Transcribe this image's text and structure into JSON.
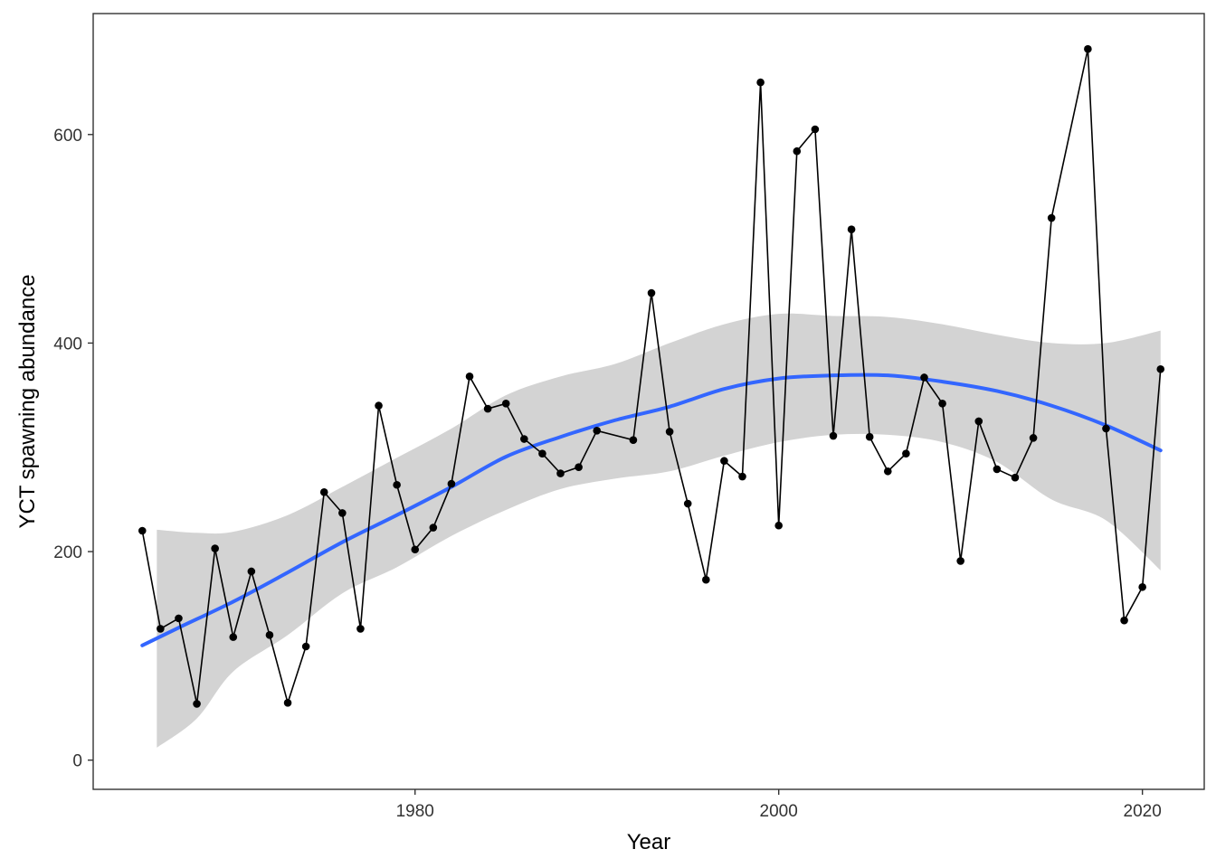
{
  "chart_data": {
    "type": "line",
    "title": "",
    "xlabel": "Year",
    "ylabel": "YCT spawning abundance",
    "xlim": [
      1962.3,
      2023.4
    ],
    "ylim": [
      -28,
      716
    ],
    "x_ticks": [
      1980,
      2000,
      2020
    ],
    "y_ticks": [
      0,
      200,
      400,
      600
    ],
    "grid": false,
    "legend": "none",
    "colors": {
      "observed": "#000000",
      "smooth": "#3366FF",
      "ribbon": "#D3D3D3",
      "frame": "#333333"
    },
    "series": [
      {
        "name": "observed",
        "style": "line+points",
        "points": [
          [
            1965,
            220
          ],
          [
            1966,
            126
          ],
          [
            1967,
            136
          ],
          [
            1968,
            54
          ],
          [
            1969,
            203
          ],
          [
            1970,
            118
          ],
          [
            1971,
            181
          ],
          [
            1972,
            120
          ],
          [
            1973,
            55
          ],
          [
            1974,
            109
          ],
          [
            1975,
            257
          ],
          [
            1976,
            237
          ],
          [
            1977,
            126
          ],
          [
            1978,
            340
          ],
          [
            1979,
            264
          ],
          [
            1980,
            202
          ],
          [
            1981,
            223
          ],
          [
            1982,
            265
          ],
          [
            1983,
            368
          ],
          [
            1984,
            337
          ],
          [
            1985,
            342
          ],
          [
            1986,
            308
          ],
          [
            1987,
            294
          ],
          [
            1988,
            275
          ],
          [
            1989,
            281
          ],
          [
            1990,
            316
          ],
          [
            1992,
            307
          ],
          [
            1993,
            448
          ],
          [
            1994,
            315
          ],
          [
            1995,
            246
          ],
          [
            1996,
            173
          ],
          [
            1997,
            287
          ],
          [
            1998,
            272
          ],
          [
            1999,
            650
          ],
          [
            2000,
            225
          ],
          [
            2001,
            584
          ],
          [
            2002,
            605
          ],
          [
            2003,
            311
          ],
          [
            2004,
            509
          ],
          [
            2005,
            310
          ],
          [
            2006,
            277
          ],
          [
            2007,
            294
          ],
          [
            2008,
            367
          ],
          [
            2009,
            342
          ],
          [
            2010,
            191
          ],
          [
            2011,
            325
          ],
          [
            2012,
            279
          ],
          [
            2013,
            271
          ],
          [
            2014,
            309
          ],
          [
            2015,
            520
          ],
          [
            2017,
            682
          ],
          [
            2018,
            318
          ],
          [
            2019,
            134
          ],
          [
            2020,
            166
          ],
          [
            2021,
            375
          ]
        ]
      },
      {
        "name": "smooth",
        "style": "smooth-line",
        "points": [
          [
            1965,
            110
          ],
          [
            1967,
            127
          ],
          [
            1970,
            152
          ],
          [
            1973,
            180
          ],
          [
            1976,
            209
          ],
          [
            1979,
            235
          ],
          [
            1982,
            262
          ],
          [
            1985,
            291
          ],
          [
            1988,
            310
          ],
          [
            1991,
            326
          ],
          [
            1994,
            339
          ],
          [
            1997,
            356
          ],
          [
            2000,
            366
          ],
          [
            2003,
            369
          ],
          [
            2006,
            369
          ],
          [
            2009,
            363
          ],
          [
            2012,
            354
          ],
          [
            2015,
            340
          ],
          [
            2018,
            321
          ],
          [
            2021,
            297
          ]
        ]
      },
      {
        "name": "confidence-band",
        "style": "ribbon",
        "points": [
          [
            1965.8,
            12,
            221
          ],
          [
            1968,
            40,
            218
          ],
          [
            1970,
            85,
            219
          ],
          [
            1973,
            120,
            235
          ],
          [
            1976,
            160,
            262
          ],
          [
            1979,
            185,
            290
          ],
          [
            1982,
            215,
            318
          ],
          [
            1985,
            240,
            350
          ],
          [
            1988,
            260,
            368
          ],
          [
            1991,
            270,
            380
          ],
          [
            1994,
            277,
            400
          ],
          [
            1997,
            292,
            418
          ],
          [
            2000,
            305,
            428
          ],
          [
            2003,
            312,
            426
          ],
          [
            2006,
            312,
            425
          ],
          [
            2009,
            305,
            418
          ],
          [
            2012,
            286,
            408
          ],
          [
            2015,
            250,
            400
          ],
          [
            2018,
            230,
            400
          ],
          [
            2021,
            182,
            412
          ]
        ]
      }
    ]
  }
}
